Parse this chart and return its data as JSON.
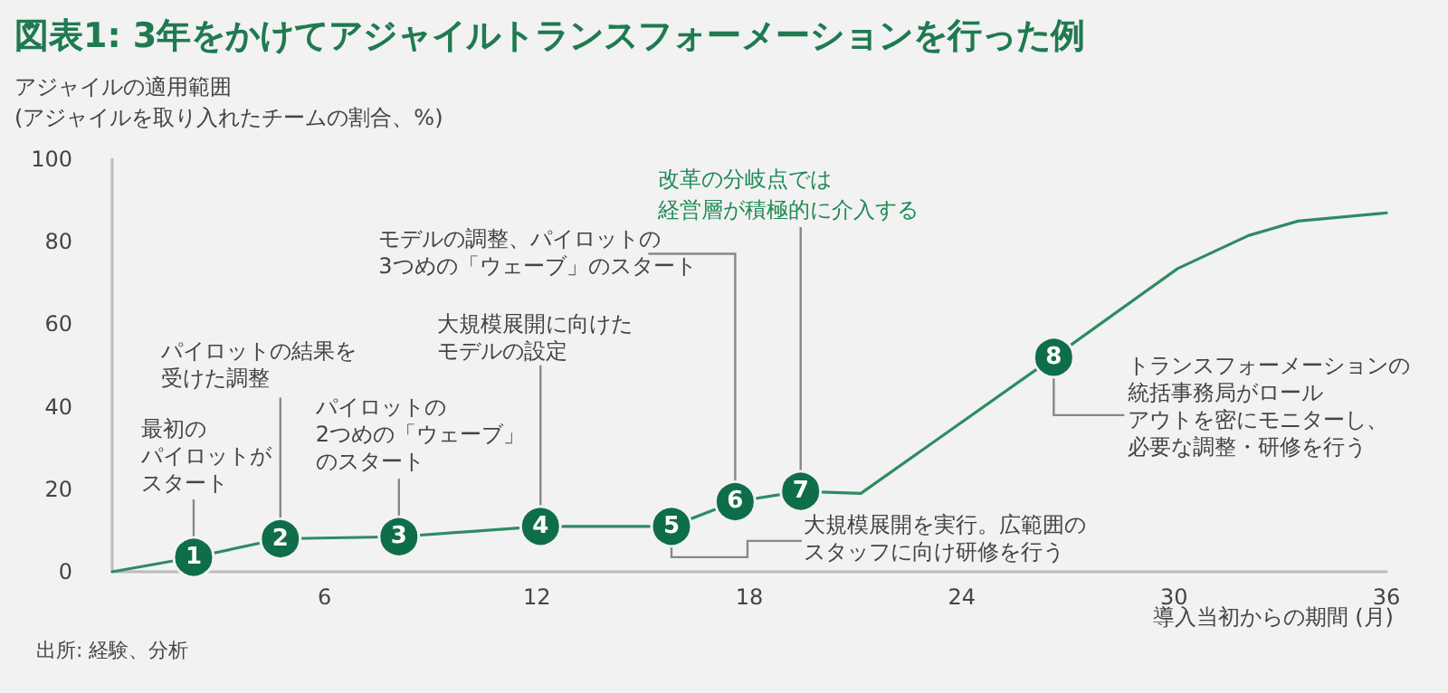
{
  "chart_data": {
    "type": "line",
    "title": "図表1: 3年をかけてアジャイルトランスフォーメーションを行った例",
    "xlabel": "導入当初からの期間 (月)",
    "ylabel": "アジャイルの適用範囲\n(アジャイルを取り入れたチームの割合、%)",
    "x": [
      0,
      2.3,
      4.75,
      8.1,
      12.1,
      15.8,
      17.6,
      19.45,
      21.15,
      26.6,
      30.1,
      32.1,
      33.5,
      36
    ],
    "series": [
      {
        "color": "#2e8b62",
        "values": [
          0,
          3.5,
          8,
          8.5,
          11,
          11,
          17,
          19.5,
          19,
          52,
          73.5,
          81.5,
          85,
          87
        ]
      }
    ],
    "xlim": [
      0,
      36
    ],
    "xticks": [
      6,
      12,
      18,
      24,
      30,
      36
    ],
    "ylim": [
      0,
      100
    ],
    "yticks": [
      0,
      20,
      40,
      60,
      80,
      100
    ],
    "grid": false,
    "annotations": [
      {
        "text": "1",
        "x": 2.3,
        "y": 3.5
      },
      {
        "text": "2",
        "x": 4.75,
        "y": 8
      },
      {
        "text": "3",
        "x": 8.1,
        "y": 8.5
      },
      {
        "text": "4",
        "x": 12.1,
        "y": 11
      },
      {
        "text": "5",
        "x": 15.8,
        "y": 11
      },
      {
        "text": "6",
        "x": 17.6,
        "y": 17
      },
      {
        "text": "7",
        "x": 19.45,
        "y": 19.5
      },
      {
        "text": "8",
        "x": 26.6,
        "y": 52
      },
      {
        "text": "最初のパイロットがスタート",
        "x": 2.3,
        "y": 3.5
      },
      {
        "text": "パイロットの結果を受けた調整",
        "x": 4.75,
        "y": 8
      },
      {
        "text": "パイロットの2つめの「ウェーブ」のスタート",
        "x": 8.1,
        "y": 8.5
      },
      {
        "text": "大規模展開に向けたモデルの設定",
        "x": 12.1,
        "y": 11
      },
      {
        "text": "大規模展開を実行。広範囲のスタッフに向け研修を行う",
        "x": 15.8,
        "y": 11
      },
      {
        "text": "モデルの調整、パイロットの3つめの「ウェーブ」のスタート",
        "x": 17.6,
        "y": 17
      },
      {
        "text": "改革の分岐点では経営層が積極的に介入する",
        "x": 19.45,
        "y": 19.5
      },
      {
        "text": "トランスフォーメーションの統括事務局がロールアウトを密にモニターし、必要な調整・研修を行う",
        "x": 26.6,
        "y": 52
      },
      "出所: 経験、分析"
    ]
  }
}
